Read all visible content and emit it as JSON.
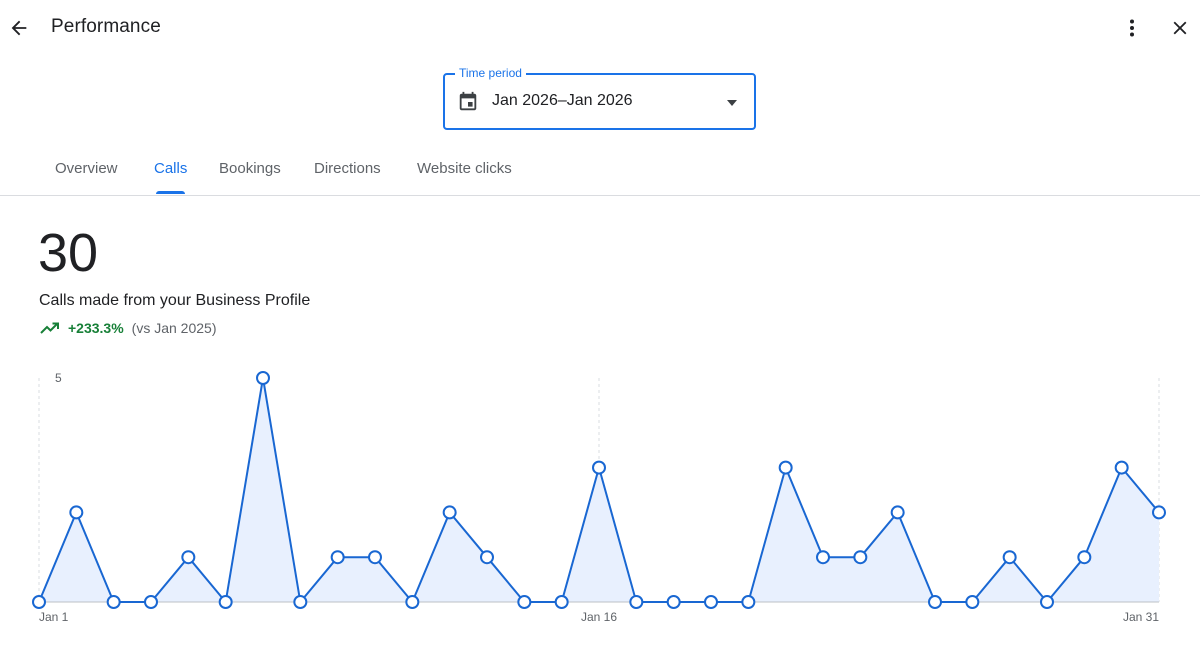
{
  "header": {
    "title": "Performance",
    "back_icon": "arrow-back-icon",
    "more_icon": "more-vert-icon",
    "close_icon": "close-icon"
  },
  "time_period": {
    "label": "Time period",
    "value": "Jan 2026–Jan 2026",
    "icon": "calendar-icon"
  },
  "tabs": [
    {
      "label": "Overview",
      "active": false
    },
    {
      "label": "Calls",
      "active": true
    },
    {
      "label": "Bookings",
      "active": false
    },
    {
      "label": "Directions",
      "active": false
    },
    {
      "label": "Website clicks",
      "active": false
    }
  ],
  "metric": {
    "value": "30",
    "description": "Calls made from your Business Profile",
    "change": "+233.3%",
    "comparison": "(vs Jan 2025)",
    "trend_icon": "trending-up-icon"
  },
  "colors": {
    "accent": "#1a73e8",
    "line": "#1967d2",
    "area": "#e8f0fe",
    "positive": "#188038"
  },
  "chart_data": {
    "type": "area",
    "y_tick_label": "5",
    "ylim": [
      0,
      5
    ],
    "x_tick_labels": [
      "Jan 1",
      "Jan 16",
      "Jan 31"
    ],
    "x": [
      1,
      2,
      3,
      4,
      5,
      6,
      7,
      8,
      9,
      10,
      11,
      12,
      13,
      14,
      15,
      16,
      17,
      18,
      19,
      20,
      21,
      22,
      23,
      24,
      25,
      26,
      27,
      28,
      29,
      30,
      31
    ],
    "values": [
      0,
      2,
      0,
      0,
      1,
      0,
      5,
      0,
      1,
      1,
      0,
      2,
      1,
      0,
      0,
      3,
      0,
      0,
      0,
      0,
      3,
      1,
      1,
      2,
      0,
      0,
      1,
      0,
      1,
      3,
      2
    ],
    "grid": "vertical dashed at Jan 1, Jan 16, Jan 31"
  }
}
